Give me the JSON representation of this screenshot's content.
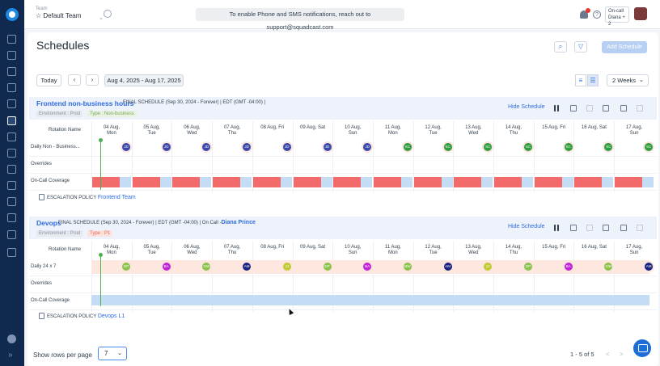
{
  "topbar": {
    "team_label": "Team",
    "team_value": "☆ Default Team",
    "banner": "To enable Phone and SMS notifications, reach out to support@squadcast.com",
    "oncall_line1": "On-call",
    "oncall_line2": "Diana + 2",
    "help": "?"
  },
  "page": {
    "title": "Schedules",
    "add_schedule": "Add Schedule",
    "today": "Today",
    "date_range": "Aug 4, 2025 - Aug 17, 2025",
    "weeks": "2 Weeks"
  },
  "days": [
    {
      "date": "04 Aug,",
      "dow": "Mon"
    },
    {
      "date": "05 Aug,",
      "dow": "Tue"
    },
    {
      "date": "06 Aug,",
      "dow": "Wed"
    },
    {
      "date": "07 Aug,",
      "dow": "Thu"
    },
    {
      "date": "08 Aug, Fri",
      "dow": ""
    },
    {
      "date": "09 Aug, Sat",
      "dow": ""
    },
    {
      "date": "10 Aug,",
      "dow": "Sun"
    },
    {
      "date": "11 Aug,",
      "dow": "Mon"
    },
    {
      "date": "12 Aug,",
      "dow": "Tue"
    },
    {
      "date": "13 Aug,",
      "dow": "Wed"
    },
    {
      "date": "14 Aug,",
      "dow": "Thu"
    },
    {
      "date": "15 Aug, Fri",
      "dow": ""
    },
    {
      "date": "16 Aug, Sat",
      "dow": ""
    },
    {
      "date": "17 Aug,",
      "dow": "Sun"
    }
  ],
  "schedules": [
    {
      "name": "Frontend non-business hours",
      "type": "FINAL SCHEDULE",
      "period": "(Sep 30, 2024 - Forever)",
      "tz": "EDT (GMT -04:00)",
      "sep": "|",
      "oncall_prefix": "",
      "oncall_name": "",
      "tag_env": "Environment : Prod",
      "tag_type": "Type : Non-business",
      "hide": "Hide Schedule",
      "rotation_header": "Rotation Name",
      "rows": [
        "Daily Non - Business...",
        "Overrides",
        "On-Call Coverage"
      ],
      "chips": [
        "JD",
        "JD",
        "JD",
        "JD",
        "JD",
        "JD",
        "JD",
        "SC",
        "SC",
        "SC",
        "SC",
        "SC",
        "SC",
        "SC"
      ],
      "chip_colors": [
        "#3949ab",
        "#3949ab",
        "#3949ab",
        "#3949ab",
        "#3949ab",
        "#3949ab",
        "#3949ab",
        "#2e9e3e",
        "#2e9e3e",
        "#2e9e3e",
        "#2e9e3e",
        "#2e9e3e",
        "#2e9e3e",
        "#2e9e3e"
      ],
      "escalation_label": "ESCALATION POLICY",
      "escalation_value": "Frontend Team"
    },
    {
      "name": "Devops",
      "type": "FINAL SCHEDULE",
      "period": "(Sep 30, 2024 - Forever)",
      "tz": "EDT (GMT -04:00)",
      "sep": "|",
      "oncall_prefix": "On Call -",
      "oncall_name": "Diana Prince",
      "tag_env": "Environment : Prod",
      "tag_type": "Type : P1",
      "hide": "Hide Schedule",
      "rotation_header": "Rotation Name",
      "rows": [
        "Daily 24 x 7",
        "Overrides",
        "On-Call Coverage"
      ],
      "chips": [
        "DP",
        "BA",
        "GW",
        "AM",
        "JJ",
        "DP",
        "BA",
        "BW",
        "AM",
        "JJ",
        "DP",
        "BA",
        "GW",
        "AM"
      ],
      "chip_colors": [
        "#8bc34a",
        "#c026d3",
        "#8bc34a",
        "#1a237e",
        "#c0ca33",
        "#8bc34a",
        "#c026d3",
        "#8bc34a",
        "#1a237e",
        "#c0ca33",
        "#8bc34a",
        "#c026d3",
        "#8bc34a",
        "#1a237e"
      ],
      "escalation_label": "ESCALATION POLICY",
      "escalation_value": "Devops L1"
    }
  ],
  "footer": {
    "rows_label": "Show rows per page",
    "rows_value": "7",
    "pagination": "1 - 5 of 5",
    "prev": "<",
    "next": ">"
  },
  "colors": {
    "accent": "#2d6be0",
    "coverage_red": "#f26a6a",
    "coverage_blue": "#c5dcf5",
    "sidebar": "#0f2a4e"
  }
}
